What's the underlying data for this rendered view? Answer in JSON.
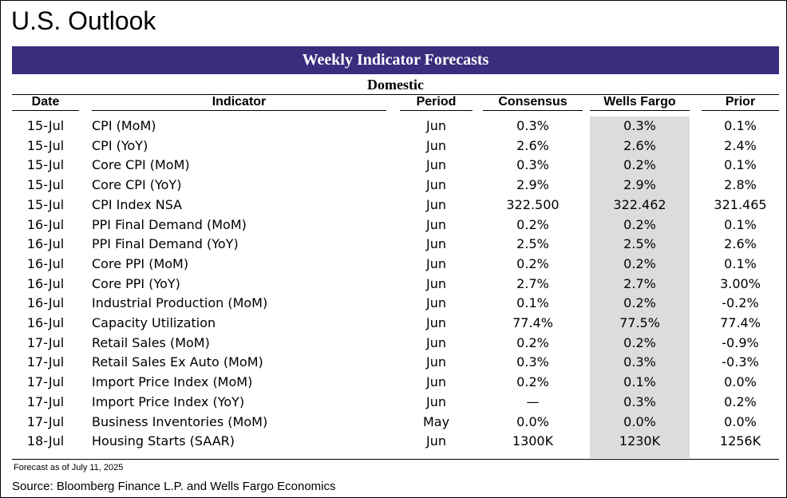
{
  "page": {
    "title": "U.S. Outlook"
  },
  "table": {
    "banner": "Weekly Indicator Forecasts",
    "section": "Domestic",
    "columns": {
      "date": "Date",
      "indicator": "Indicator",
      "period": "Period",
      "consensus": "Consensus",
      "wells_fargo": "Wells Fargo",
      "prior": "Prior"
    },
    "rows": [
      {
        "date": "15-Jul",
        "indicator": "CPI (MoM)",
        "period": "Jun",
        "consensus": "0.3%",
        "wells_fargo": "0.3%",
        "prior": "0.1%"
      },
      {
        "date": "15-Jul",
        "indicator": "CPI (YoY)",
        "period": "Jun",
        "consensus": "2.6%",
        "wells_fargo": "2.6%",
        "prior": "2.4%"
      },
      {
        "date": "15-Jul",
        "indicator": "Core CPI (MoM)",
        "period": "Jun",
        "consensus": "0.3%",
        "wells_fargo": "0.2%",
        "prior": "0.1%"
      },
      {
        "date": "15-Jul",
        "indicator": "Core CPI (YoY)",
        "period": "Jun",
        "consensus": "2.9%",
        "wells_fargo": "2.9%",
        "prior": "2.8%"
      },
      {
        "date": "15-Jul",
        "indicator": "CPI Index NSA",
        "period": "Jun",
        "consensus": "322.500",
        "wells_fargo": "322.462",
        "prior": "321.465"
      },
      {
        "date": "16-Jul",
        "indicator": "PPI Final Demand (MoM)",
        "period": "Jun",
        "consensus": "0.2%",
        "wells_fargo": "0.2%",
        "prior": "0.1%"
      },
      {
        "date": "16-Jul",
        "indicator": "PPI Final Demand (YoY)",
        "period": "Jun",
        "consensus": "2.5%",
        "wells_fargo": "2.5%",
        "prior": "2.6%"
      },
      {
        "date": "16-Jul",
        "indicator": "Core PPI (MoM)",
        "period": "Jun",
        "consensus": "0.2%",
        "wells_fargo": "0.2%",
        "prior": "0.1%"
      },
      {
        "date": "16-Jul",
        "indicator": "Core PPI (YoY)",
        "period": "Jun",
        "consensus": "2.7%",
        "wells_fargo": "2.7%",
        "prior": "3.00%"
      },
      {
        "date": "16-Jul",
        "indicator": "Industrial Production (MoM)",
        "period": "Jun",
        "consensus": "0.1%",
        "wells_fargo": "0.2%",
        "prior": "-0.2%"
      },
      {
        "date": "16-Jul",
        "indicator": "Capacity Utilization",
        "period": "Jun",
        "consensus": "77.4%",
        "wells_fargo": "77.5%",
        "prior": "77.4%"
      },
      {
        "date": "17-Jul",
        "indicator": "Retail Sales (MoM)",
        "period": "Jun",
        "consensus": "0.2%",
        "wells_fargo": "0.2%",
        "prior": "-0.9%"
      },
      {
        "date": "17-Jul",
        "indicator": "Retail Sales Ex Auto (MoM)",
        "period": "Jun",
        "consensus": "0.3%",
        "wells_fargo": "0.3%",
        "prior": "-0.3%"
      },
      {
        "date": "17-Jul",
        "indicator": "Import Price Index (MoM)",
        "period": "Jun",
        "consensus": "0.2%",
        "wells_fargo": "0.1%",
        "prior": "0.0%"
      },
      {
        "date": "17-Jul",
        "indicator": "Import Price Index (YoY)",
        "period": "Jun",
        "consensus": "—",
        "wells_fargo": "0.3%",
        "prior": "0.2%"
      },
      {
        "date": "17-Jul",
        "indicator": "Business Inventories (MoM)",
        "period": "May",
        "consensus": "0.0%",
        "wells_fargo": "0.0%",
        "prior": "0.0%"
      },
      {
        "date": "18-Jul",
        "indicator": "Housing Starts (SAAR)",
        "period": "Jun",
        "consensus": "1300K",
        "wells_fargo": "1230K",
        "prior": "1256K"
      }
    ]
  },
  "footer": {
    "note": "Forecast as of July 11, 2025",
    "source": "Source: Bloomberg Finance L.P. and Wells Fargo Economics"
  },
  "colors": {
    "banner": "#3a2d7d",
    "wells_fargo_shade": "#dcdcdc"
  }
}
